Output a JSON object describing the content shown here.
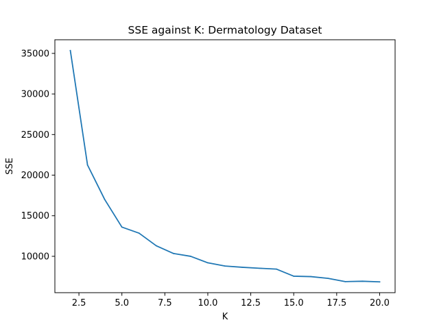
{
  "chart_data": {
    "type": "line",
    "title": "SSE against K: Dermatology Dataset",
    "xlabel": "K",
    "ylabel": "SSE",
    "xlim": [
      1.1,
      20.9
    ],
    "ylim": [
      5520,
      36680
    ],
    "xticks": [
      2.5,
      5.0,
      7.5,
      10.0,
      12.5,
      15.0,
      17.5,
      20.0
    ],
    "xtick_labels": [
      "2.5",
      "5.0",
      "7.5",
      "10.0",
      "12.5",
      "15.0",
      "17.5",
      "20.0"
    ],
    "yticks": [
      10000,
      15000,
      20000,
      25000,
      30000,
      35000
    ],
    "ytick_labels": [
      "10000",
      "15000",
      "20000",
      "25000",
      "30000",
      "35000"
    ],
    "grid": false,
    "legend": "none",
    "line_color": "#1f77b4",
    "series": [
      {
        "x": [
          2,
          3,
          4,
          5,
          6,
          7,
          8,
          9,
          10,
          11,
          12,
          13,
          14,
          15,
          16,
          17,
          18,
          19,
          20
        ],
        "values": [
          35350,
          21250,
          17000,
          13600,
          12850,
          11300,
          10350,
          10000,
          9200,
          8800,
          8650,
          8530,
          8420,
          7550,
          7500,
          7280,
          6880,
          6930,
          6850
        ]
      }
    ]
  }
}
